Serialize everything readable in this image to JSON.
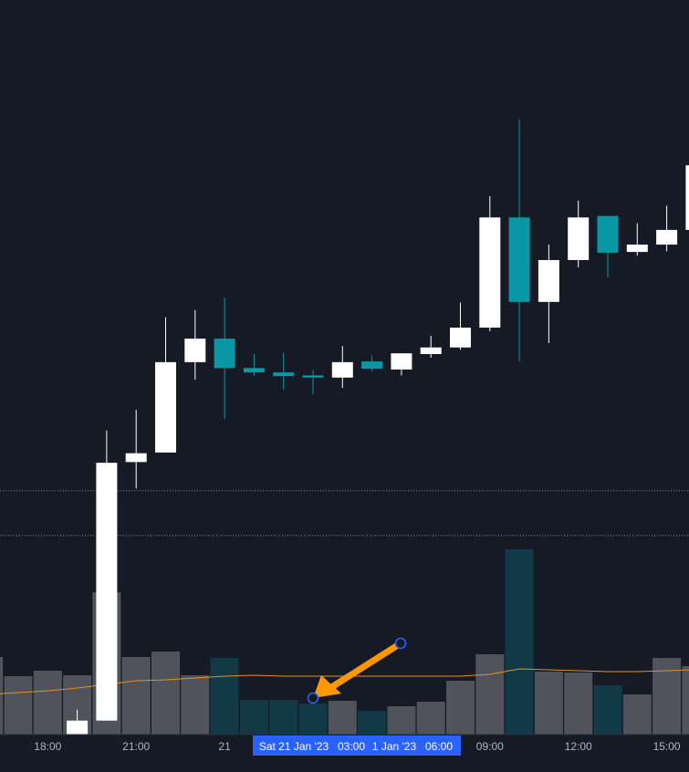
{
  "chart_data": {
    "type": "candlestick",
    "categories": [
      null,
      null,
      "18:00",
      null,
      null,
      "21:00",
      null,
      null,
      "21",
      null,
      null,
      null,
      null,
      null,
      null,
      null,
      null,
      "09:00",
      null,
      null,
      "12:00",
      null,
      null,
      "15:00",
      null
    ],
    "open": [
      null,
      null,
      null,
      0,
      1.9,
      37.1,
      38.4,
      50.7,
      53.9,
      49.9,
      49.3,
      48.9,
      48.6,
      50.8,
      49.7,
      51.8,
      52.7,
      55.4,
      70.4,
      58.9,
      64.6,
      70.6,
      65.7,
      66.7,
      68.7
    ],
    "high": [
      null,
      null,
      null,
      3.4,
      41.4,
      44.2,
      56.8,
      57.8,
      59.5,
      51.8,
      52.0,
      49.6,
      52.9,
      51.6,
      51.9,
      54.3,
      58.8,
      73.3,
      83.7,
      66.7,
      72.7,
      70.6,
      69.6,
      72.0,
      81.4
    ],
    "low": [
      null,
      null,
      null,
      0,
      1.9,
      33.5,
      38.4,
      48.3,
      43.0,
      48.8,
      47.0,
      46.3,
      47.2,
      49.4,
      48.9,
      51.3,
      52.4,
      54.9,
      50.8,
      53.3,
      63.6,
      62.2,
      65.2,
      65.8,
      68.7
    ],
    "close": [
      null,
      null,
      null,
      1.9,
      37.0,
      38.3,
      50.7,
      53.9,
      49.9,
      49.3,
      48.8,
      48.6,
      50.7,
      49.8,
      51.9,
      52.7,
      55.4,
      70.4,
      58.9,
      64.6,
      70.4,
      65.6,
      66.7,
      68.7,
      77.5
    ],
    "up_color": "#ffffff",
    "down_color": "#0a97a5",
    "ylim": [
      0,
      100
    ],
    "price_lines": [
      33.2,
      27.1
    ],
    "volume": {
      "values": [
        34.0,
        25.6,
        28.0,
        26.0,
        62.4,
        34.0,
        36.4,
        26.0,
        33.6,
        15.2,
        15.2,
        13.6,
        14.8,
        10.4,
        12.4,
        14.4,
        23.6,
        35.2,
        81.2,
        27.6,
        27.2,
        21.6,
        17.6,
        33.6,
        30.0
      ],
      "up_color": "#50535c",
      "down_color": "#123a46",
      "neutral_color": "#50535c",
      "ylim": [
        0,
        100
      ]
    },
    "volume_ma": {
      "values": [
        17.6,
        18.4,
        19.2,
        20.4,
        22.0,
        23.6,
        24.0,
        24.8,
        25.6,
        26.0,
        25.6,
        25.6,
        25.6,
        25.6,
        25.6,
        25.6,
        25.6,
        26.4,
        28.8,
        28.4,
        28.0,
        27.6,
        27.6,
        28.0,
        28.4
      ],
      "color": "#e8901e"
    },
    "crosshair_labels": [
      "Sat 21 Jan '23",
      "03:00",
      "1 Jan '23",
      "06:00"
    ],
    "grid": false
  }
}
